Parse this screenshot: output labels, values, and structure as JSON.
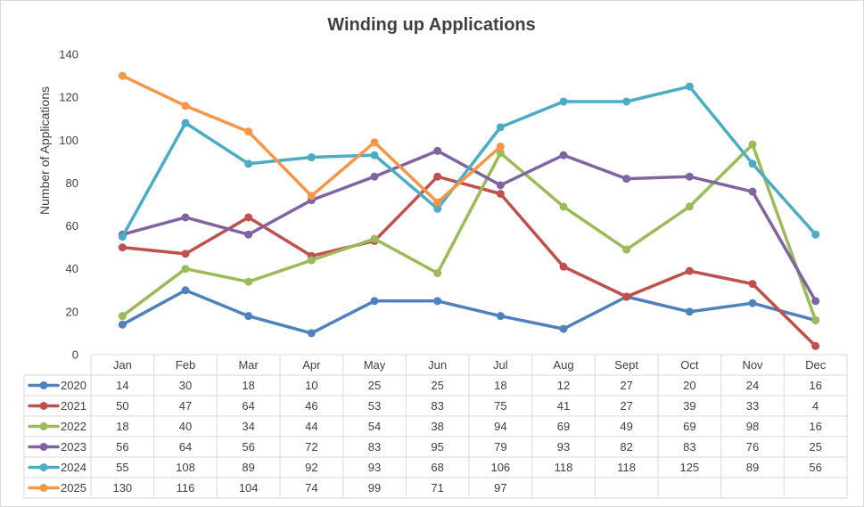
{
  "chart_data": {
    "type": "line",
    "title": "Winding up Applications",
    "xlabel": "",
    "ylabel": "Number of Applications",
    "ylim": [
      0,
      140
    ],
    "yticks": [
      0,
      20,
      40,
      60,
      80,
      100,
      120,
      140
    ],
    "grid": false,
    "legend": "data-table",
    "categories": [
      "Jan",
      "Feb",
      "Mar",
      "Apr",
      "May",
      "Jun",
      "Jul",
      "Aug",
      "Sept",
      "Oct",
      "Nov",
      "Dec"
    ],
    "series": [
      {
        "name": "2020",
        "color": "#4f81bd",
        "values": [
          14,
          30,
          18,
          10,
          25,
          25,
          18,
          12,
          27,
          20,
          24,
          16
        ]
      },
      {
        "name": "2021",
        "color": "#c0504d",
        "values": [
          50,
          47,
          64,
          46,
          53,
          83,
          75,
          41,
          27,
          39,
          33,
          4
        ]
      },
      {
        "name": "2022",
        "color": "#9bbb59",
        "values": [
          18,
          40,
          34,
          44,
          54,
          38,
          94,
          69,
          49,
          69,
          98,
          16
        ]
      },
      {
        "name": "2023",
        "color": "#8064a2",
        "values": [
          56,
          64,
          56,
          72,
          83,
          95,
          79,
          93,
          82,
          83,
          76,
          25
        ]
      },
      {
        "name": "2024",
        "color": "#4bacc6",
        "values": [
          55,
          108,
          89,
          92,
          93,
          68,
          106,
          118,
          118,
          125,
          89,
          56
        ]
      },
      {
        "name": "2025",
        "color": "#f79646",
        "values": [
          130,
          116,
          104,
          74,
          99,
          71,
          97,
          null,
          null,
          null,
          null,
          null
        ]
      }
    ]
  }
}
